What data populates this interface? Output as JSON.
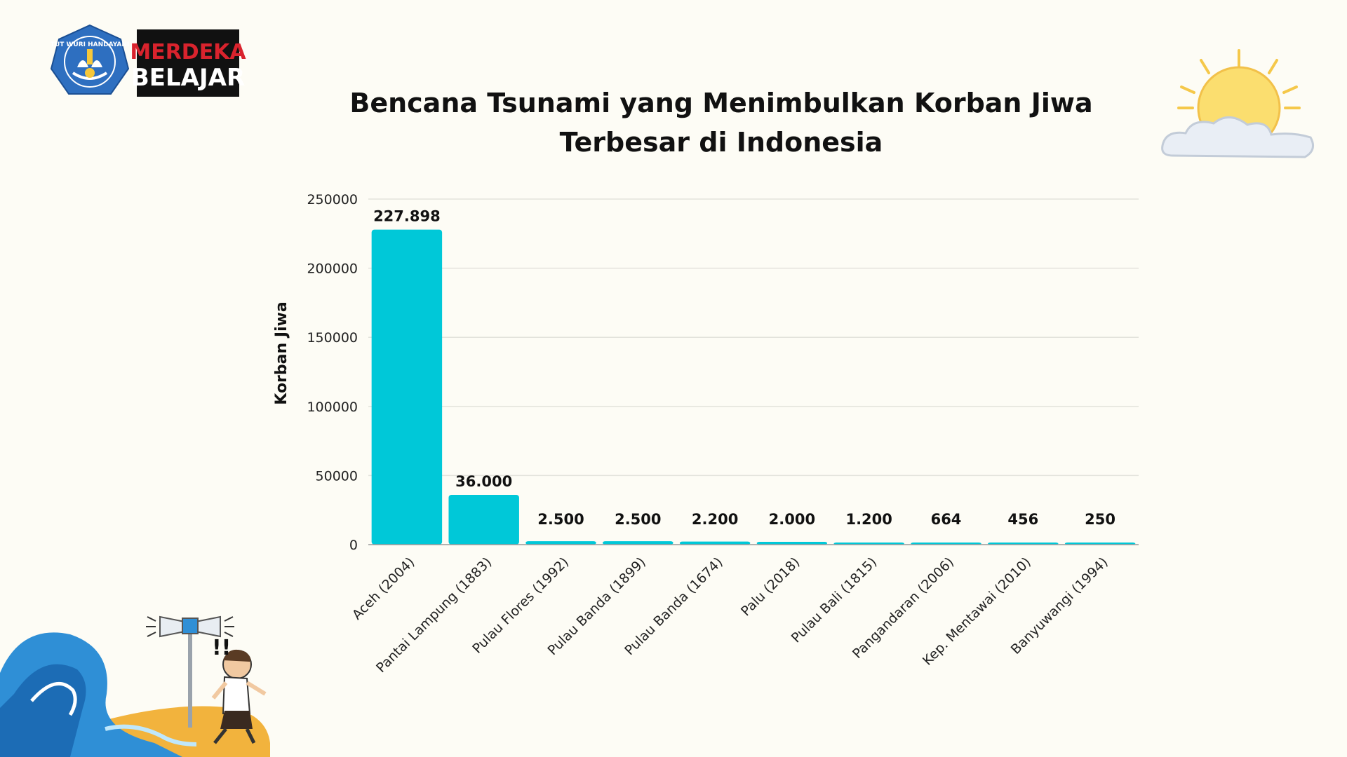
{
  "logos": {
    "tut_wuri": {
      "ring_text": "TUT WURI HANDAYANI"
    },
    "merdeka_belajar": {
      "line1": "MERDEKA",
      "line2": "BELAJAR"
    }
  },
  "colors": {
    "background": "#fdfcf5",
    "bar": "#00c8d8",
    "grid": "#e3e3dc",
    "axis": "#999999"
  },
  "chart_data": {
    "type": "bar",
    "title_lines": [
      "Bencana Tsunami yang Menimbulkan Korban Jiwa",
      "Terbesar di Indonesia"
    ],
    "ylabel": "Korban Jiwa",
    "xlabel": "",
    "ylim": [
      0,
      250000
    ],
    "yticks": [
      0,
      50000,
      100000,
      150000,
      200000,
      250000
    ],
    "grid": true,
    "categories": [
      "Aceh (2004)",
      "Pantai Lampung (1883)",
      "Pulau Flores (1992)",
      "Pulau Banda (1899)",
      "Pulau Banda (1674)",
      "Palu (2018)",
      "Pulau Bali (1815)",
      "Pangandaran (2006)",
      "Kep. Mentawai (2010)",
      "Banyuwangi (1994)"
    ],
    "values": [
      227898,
      36000,
      2500,
      2500,
      2200,
      2000,
      1200,
      664,
      456,
      250
    ],
    "data_labels": [
      "227.898",
      "36.000",
      "2.500",
      "2.500",
      "2.200",
      "2.000",
      "1.200",
      "664",
      "456",
      "250"
    ]
  }
}
